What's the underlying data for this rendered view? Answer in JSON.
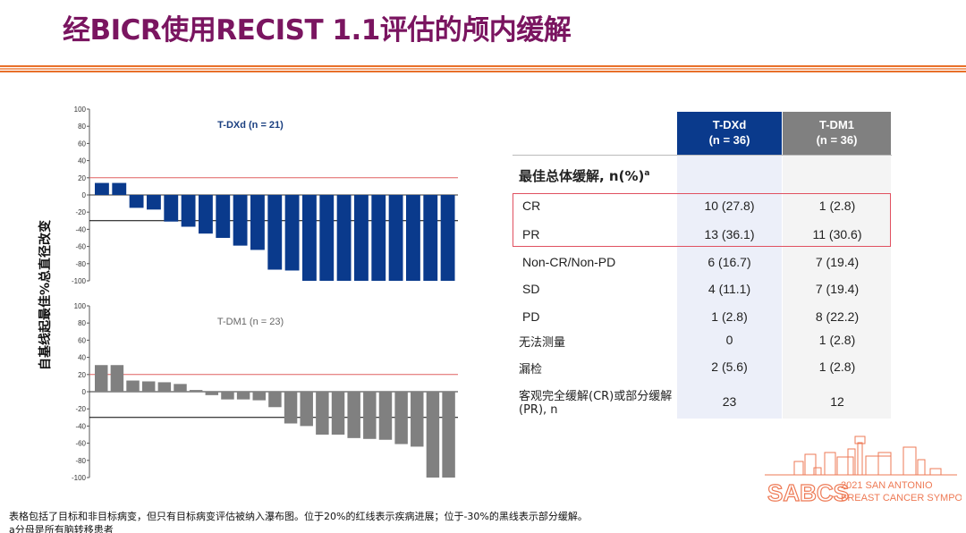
{
  "title": "经BICR使用RECIST 1.1评估的颅内缓解",
  "y_axis_label": "自基线起最佳%总直径改变",
  "colors": {
    "title": "#7a1560",
    "tdxd": "#0a3a8c",
    "tdm1": "#808080",
    "progression_line": "#e06060",
    "partial_response_line": "#000000",
    "rule": "#e8702a"
  },
  "chart_data": [
    {
      "type": "bar",
      "title": "T-DXd (n = 21)",
      "ylim": [
        -100,
        100
      ],
      "yticks": [
        "100",
        "80",
        "60",
        "40",
        "20",
        "0",
        "-20",
        "-40",
        "-60",
        "-80",
        "-100"
      ],
      "reference_lines": [
        20,
        -30
      ],
      "values": [
        14,
        14,
        -15,
        -17,
        -31,
        -37,
        -45,
        -50,
        -59,
        -64,
        -87,
        -88,
        -100,
        -100,
        -100,
        -100,
        -100,
        -100,
        -100,
        -100,
        -100
      ]
    },
    {
      "type": "bar",
      "title": "T-DM1 (n = 23)",
      "ylim": [
        -100,
        100
      ],
      "yticks": [
        "100",
        "80",
        "60",
        "40",
        "20",
        "0",
        "-20",
        "-40",
        "-60",
        "-80",
        "-100"
      ],
      "reference_lines": [
        20,
        -30
      ],
      "values": [
        31,
        31,
        13,
        12,
        11,
        9,
        2,
        -4,
        -9,
        -9,
        -10,
        -18,
        -37,
        -40,
        -50,
        -50,
        -54,
        -55,
        -56,
        -61,
        -64,
        -100,
        -100
      ]
    }
  ],
  "table": {
    "columns": [
      {
        "name": "T-DXd",
        "n": "(n = 36)"
      },
      {
        "name": "T-DM1",
        "n": "(n = 36)"
      }
    ],
    "section_title": "最佳总体缓解, n(%)",
    "section_sup": "a",
    "rows": [
      {
        "label": "CR",
        "tdxd": "10 (27.8)",
        "tdm1": "1 (2.8)"
      },
      {
        "label": "PR",
        "tdxd": "13 (36.1)",
        "tdm1": "11 (30.6)"
      },
      {
        "label": "Non-CR/Non-PD",
        "tdxd": "6 (16.7)",
        "tdm1": "7 (19.4)"
      },
      {
        "label": "SD",
        "tdxd": "4 (11.1)",
        "tdm1": "7 (19.4)"
      },
      {
        "label": "PD",
        "tdxd": "1 (2.8)",
        "tdm1": "8 (22.2)"
      },
      {
        "label": "无法测量",
        "tdxd": "0",
        "tdm1": "1 (2.8)"
      },
      {
        "label": "漏检",
        "tdxd": "2 (5.6)",
        "tdm1": "1 (2.8)"
      },
      {
        "label": "客观完全缓解(CR)或部分缓解(PR), n",
        "tdxd": "23",
        "tdm1": "12"
      }
    ]
  },
  "footnotes": [
    "表格包括了目标和非目标病变，但只有目标病变评估被纳入瀑布图。位于20%的红线表示疾病进展；位于-30%的黑线表示部分缓解。",
    "a分母是所有脑转移患者"
  ],
  "logo": {
    "abbr": "SABCS",
    "line1": "2021 SAN ANTONIO",
    "line2": "BREAST CANCER SYMPOSIUM"
  }
}
